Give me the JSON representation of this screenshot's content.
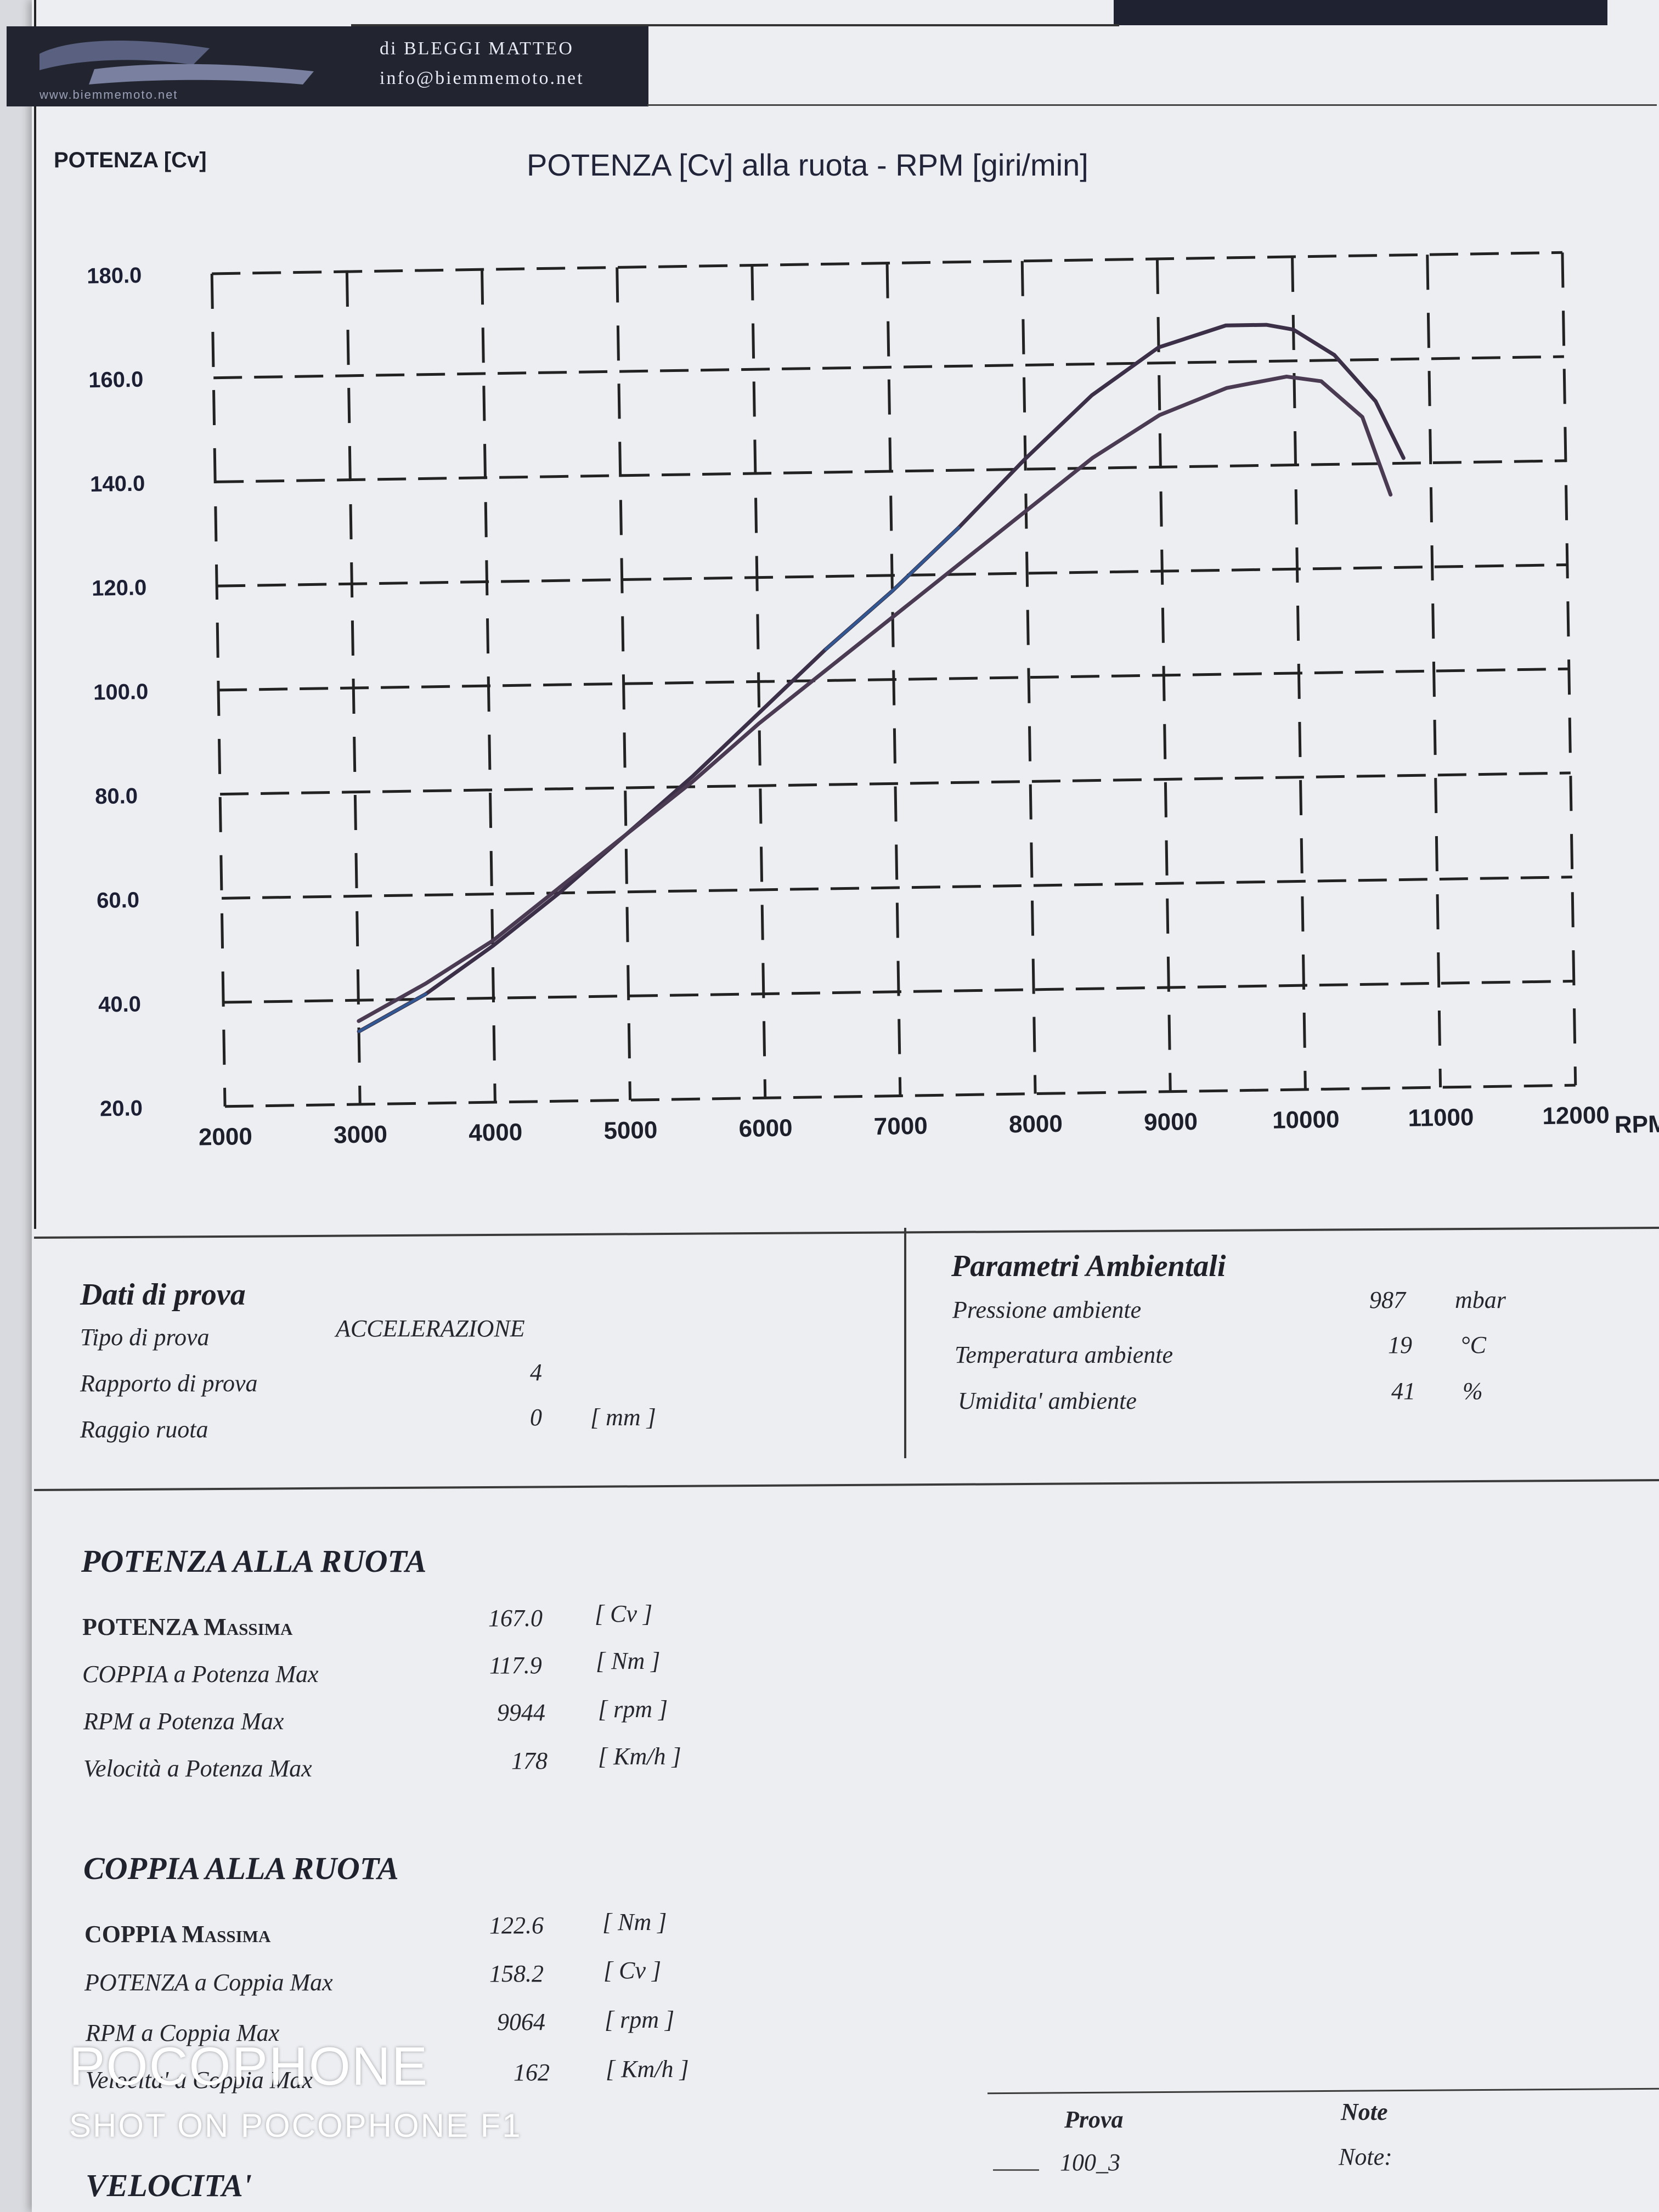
{
  "header": {
    "logo_url": "www.biemmemoto.net",
    "company_line": "di BLEGGI MATTEO",
    "email": "info@biemmemoto.net"
  },
  "colors": {
    "paper": "#eceef2",
    "curve_dark": "#3c3048",
    "curve_blue": "#2f5fa0",
    "ink": "#1f2028"
  },
  "chart_data": {
    "type": "line",
    "title": "POTENZA [Cv] alla ruota - RPM [giri/min]",
    "ylabel": "POTENZA [Cv]",
    "xlabel": "RPM [giri/min]",
    "xlim": [
      2000,
      12000
    ],
    "ylim": [
      20,
      180
    ],
    "x_ticks": [
      "2000",
      "3000",
      "4000",
      "5000",
      "6000",
      "7000",
      "8000",
      "9000",
      "10000",
      "11000",
      "12000"
    ],
    "y_ticks": [
      "20.0",
      "40.0",
      "60.0",
      "80.0",
      "100.0",
      "120.0",
      "140.0",
      "160.0",
      "180.0"
    ],
    "grid": true,
    "series": [
      {
        "color": "#3c3048",
        "x": [
          3000,
          3500,
          4000,
          4500,
          5000,
          5500,
          6000,
          6500,
          7000,
          7500,
          8000,
          8500,
          9000,
          9500,
          9800,
          10000,
          10300,
          10600,
          10800
        ],
        "y": [
          34,
          41,
          50,
          60,
          71,
          82,
          94,
          106,
          117,
          129,
          142,
          154,
          163,
          167,
          167,
          166,
          161,
          152,
          141
        ]
      },
      {
        "color": "#4a3a52",
        "x": [
          3000,
          3500,
          4000,
          4500,
          5000,
          5500,
          6000,
          6500,
          7000,
          7500,
          8000,
          8500,
          9000,
          9500,
          9944,
          10200,
          10500,
          10700
        ],
        "y": [
          36,
          43,
          51,
          61,
          71,
          81,
          92,
          102,
          112,
          122,
          132,
          142,
          150,
          155,
          157,
          156,
          149,
          134
        ]
      }
    ]
  },
  "test": {
    "title": "Dati di prova",
    "rows": [
      {
        "label": "Tipo di prova",
        "value": "ACCELERAZIONE",
        "unit": ""
      },
      {
        "label": "Rapporto di prova",
        "value": "4",
        "unit": ""
      },
      {
        "label": "Raggio ruota",
        "value": "0",
        "unit": "[ mm ]"
      }
    ]
  },
  "env": {
    "title": "Parametri Ambientali",
    "rows": [
      {
        "label": "Pressione ambiente",
        "value": "987",
        "unit": "mbar"
      },
      {
        "label": "Temperatura ambiente",
        "value": "19",
        "unit": "°C"
      },
      {
        "label": "Umidita' ambiente",
        "value": "41",
        "unit": "%"
      }
    ]
  },
  "power": {
    "title": "POTENZA ALLA RUOTA",
    "rows": [
      {
        "label": "POTENZA Massima",
        "value": "167.0",
        "unit": "[ Cv ]"
      },
      {
        "label": "COPPIA a Potenza Max",
        "value": "117.9",
        "unit": "[ Nm ]"
      },
      {
        "label": "RPM a Potenza Max",
        "value": "9944",
        "unit": "[ rpm ]"
      },
      {
        "label": "Velocità a Potenza Max",
        "value": "178",
        "unit": "[ Km/h ]"
      }
    ]
  },
  "torque": {
    "title": "COPPIA ALLA RUOTA",
    "rows": [
      {
        "label": "COPPIA Massima",
        "value": "122.6",
        "unit": "[ Nm ]"
      },
      {
        "label": "POTENZA a Coppia Max",
        "value": "158.2",
        "unit": "[ Cv ]"
      },
      {
        "label": "RPM a Coppia Max",
        "value": "9064",
        "unit": "[ rpm ]"
      },
      {
        "label": "Velocita' a Coppia Max",
        "value": "162",
        "unit": "[ Km/h ]"
      }
    ]
  },
  "speed": {
    "title": "VELOCITA'"
  },
  "legend": {
    "prova_header": "Prova",
    "note_header": "Note",
    "prova_value": "100_3",
    "note_value": "Note:"
  },
  "watermark": {
    "line1": "POCOPHONE",
    "line2": "SHOT ON POCOPHONE F1"
  }
}
